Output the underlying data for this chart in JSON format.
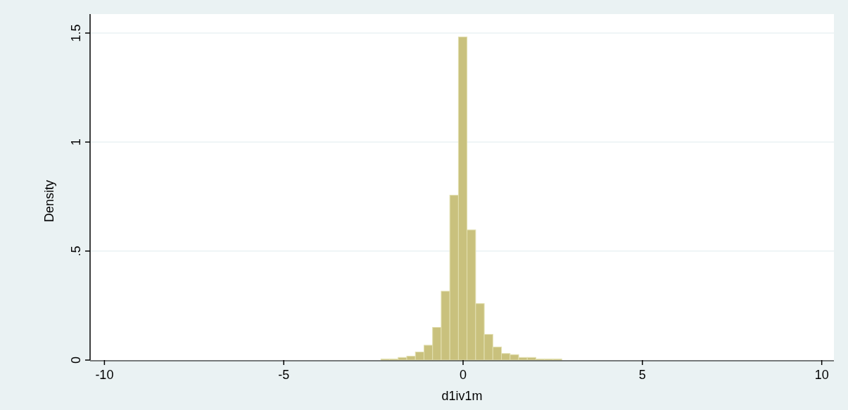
{
  "chart_data": {
    "type": "histogram",
    "xlabel": "d1iv1m",
    "ylabel": "Density",
    "color": "#c9c17d",
    "bins": [
      -2.29,
      -2.05,
      -1.81,
      -1.57,
      -1.33,
      -1.09,
      -0.85,
      -0.61,
      -0.37,
      -0.13,
      0.11,
      0.35,
      0.59,
      0.83,
      1.07,
      1.31,
      1.55,
      1.79,
      2.03,
      2.27,
      2.51,
      2.75
    ],
    "values": [
      0.005,
      0.005,
      0.012,
      0.018,
      0.037,
      0.068,
      0.15,
      0.316,
      0.756,
      1.482,
      0.597,
      0.259,
      0.118,
      0.06,
      0.03,
      0.025,
      0.012,
      0.012,
      0.005,
      0.005,
      0.005
    ],
    "xlim": [
      -10.4,
      10.34
    ],
    "xticks": [
      -10,
      -5,
      0,
      5,
      10
    ],
    "ylim": [
      0,
      1.5
    ],
    "yticks": [
      0,
      {
        "value": 0.5,
        "label": ".5"
      },
      1,
      1.5
    ],
    "grid": "y"
  }
}
